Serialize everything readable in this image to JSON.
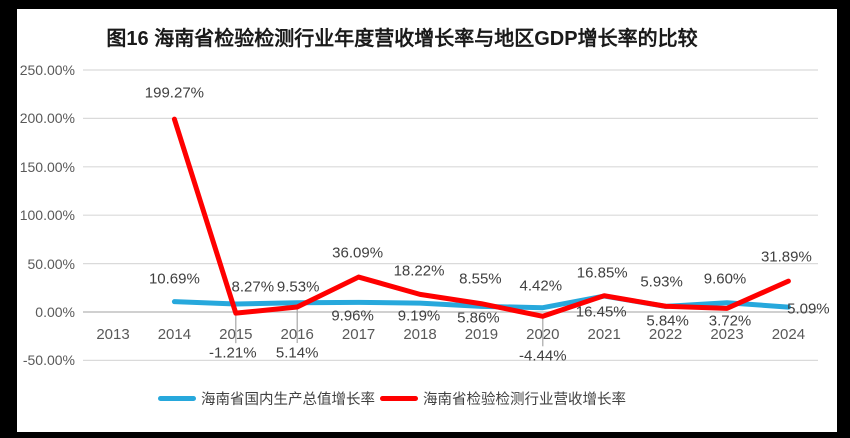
{
  "canvas": {
    "frame_color": "#000000",
    "surface_color": "#FFFFFF"
  },
  "chart_data": {
    "type": "line",
    "title": "图16  海南省检验检测行业年度营收增长率与地区GDP增长率的比较",
    "categories": [
      "2013",
      "2014",
      "2015",
      "2016",
      "2017",
      "2018",
      "2019",
      "2020",
      "2021",
      "2022",
      "2023",
      "2024"
    ],
    "y_axis": {
      "ticks": [
        "250.00%",
        "200.00%",
        "150.00%",
        "100.00%",
        "50.00%",
        "0.00%",
        "-50.00%"
      ],
      "tick_values": [
        250,
        200,
        150,
        100,
        50,
        0,
        -50
      ],
      "min": -50,
      "max": 250
    },
    "grid": true,
    "legend_position": "bottom",
    "value_suffix": "%",
    "colors": {
      "grid": "#DADADA",
      "zero_line": "#C0C0C0",
      "leader": "#A6A6A6",
      "data_label": "#404040",
      "axis_label": "#595959"
    },
    "series": [
      {
        "name": "海南省国内生产总值增长率",
        "color": "#27A8DC",
        "values": [
          null,
          10.69,
          8.27,
          9.53,
          9.96,
          9.19,
          5.86,
          4.42,
          16.45,
          5.84,
          9.6,
          5.09
        ],
        "label_offsets": [
          null,
          [
            0,
            -23
          ],
          [
            17,
            -17
          ],
          [
            1,
            -16
          ],
          [
            -6,
            14
          ],
          [
            -1,
            13
          ],
          [
            -3,
            12
          ],
          [
            -2,
            -22
          ],
          [
            -3,
            16
          ],
          [
            2,
            15
          ],
          [
            -2,
            -24
          ],
          [
            20,
            2
          ]
        ],
        "callouts": []
      },
      {
        "name": "海南省检验检测行业营收增长率",
        "color": "#FF0000",
        "values": [
          null,
          199.27,
          -1.21,
          5.14,
          36.09,
          18.22,
          8.55,
          -4.44,
          16.85,
          5.93,
          3.72,
          31.89
        ],
        "label_offsets": [
          null,
          [
            0,
            -26
          ],
          [
            -3,
            40
          ],
          [
            0,
            46
          ],
          [
            -1,
            -24
          ],
          [
            -1,
            -23
          ],
          [
            -1,
            -25
          ],
          [
            0,
            40
          ],
          [
            -2,
            -23
          ],
          [
            -4,
            -24
          ],
          [
            3,
            13
          ],
          [
            -2,
            -24
          ]
        ],
        "callouts": [
          2,
          3,
          7
        ]
      }
    ]
  }
}
